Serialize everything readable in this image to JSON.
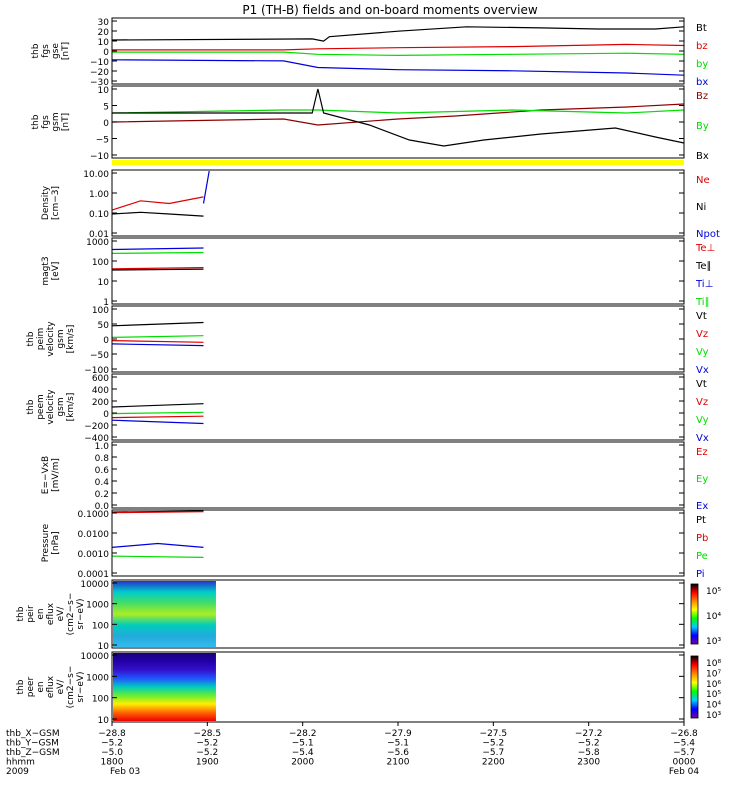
{
  "title": "P1 (TH-B) fields and on-board moments overview",
  "colors": {
    "black": "#000000",
    "red": "#dd0000",
    "green": "#00dd00",
    "blue": "#0000dd",
    "darkred": "#8b0000",
    "yellow": "#ffff00"
  },
  "chart_data": [
    {
      "type": "line",
      "ylabel": [
        "thb",
        "fgs",
        "gse",
        "[nT]"
      ],
      "yticks": [
        "30",
        "20",
        "10",
        "0",
        "−10",
        "−20",
        "−30"
      ],
      "ylim": [
        -30,
        30
      ],
      "legend": [
        {
          "text": "Bt",
          "color": "black"
        },
        {
          "text": "bz",
          "color": "red"
        },
        {
          "text": "by",
          "color": "green"
        },
        {
          "text": "bx",
          "color": "blue"
        }
      ],
      "series": [
        {
          "color": "black",
          "points": [
            [
              0,
              10
            ],
            [
              0.35,
              11
            ],
            [
              0.37,
              9
            ],
            [
              0.38,
              13
            ],
            [
              0.5,
              18
            ],
            [
              0.62,
              22
            ],
            [
              0.75,
              21
            ],
            [
              0.85,
              20
            ],
            [
              0.95,
              20
            ],
            [
              1,
              22
            ]
          ]
        },
        {
          "color": "red",
          "points": [
            [
              0,
              1
            ],
            [
              0.3,
              1
            ],
            [
              0.36,
              2
            ],
            [
              0.5,
              3
            ],
            [
              0.7,
              4
            ],
            [
              0.9,
              6
            ],
            [
              1,
              5
            ]
          ]
        },
        {
          "color": "green",
          "points": [
            [
              0,
              -1
            ],
            [
              0.3,
              -1
            ],
            [
              0.36,
              -3
            ],
            [
              0.5,
              -4
            ],
            [
              0.7,
              -3
            ],
            [
              0.9,
              -2
            ],
            [
              1,
              -3
            ]
          ]
        },
        {
          "color": "blue",
          "points": [
            [
              0,
              -8
            ],
            [
              0.3,
              -9
            ],
            [
              0.36,
              -15
            ],
            [
              0.5,
              -17
            ],
            [
              0.7,
              -18
            ],
            [
              0.9,
              -20
            ],
            [
              1,
              -22
            ]
          ]
        }
      ]
    },
    {
      "type": "line",
      "ylabel": [
        "thb",
        "fgs",
        "gsm",
        "[nT]"
      ],
      "yticks": [
        "10",
        "5",
        "0",
        "−5",
        "−10"
      ],
      "ylim": [
        -14,
        10
      ],
      "legend": [
        {
          "text": "Bz",
          "color": "darkred"
        },
        {
          "text": "By",
          "color": "green"
        },
        {
          "text": "Bx",
          "color": "black"
        }
      ],
      "series": [
        {
          "color": "darkred",
          "points": [
            [
              0,
              -2
            ],
            [
              0.3,
              -1
            ],
            [
              0.36,
              -3
            ],
            [
              0.5,
              -1
            ],
            [
              0.6,
              0
            ],
            [
              0.75,
              2
            ],
            [
              0.9,
              3
            ],
            [
              1,
              4
            ]
          ]
        },
        {
          "color": "green",
          "points": [
            [
              0,
              1
            ],
            [
              0.3,
              2
            ],
            [
              0.36,
              2
            ],
            [
              0.5,
              1
            ],
            [
              0.7,
              2
            ],
            [
              0.9,
              1
            ],
            [
              1,
              2
            ]
          ]
        },
        {
          "color": "black",
          "points": [
            [
              0,
              1
            ],
            [
              0.35,
              1
            ],
            [
              0.36,
              9
            ],
            [
              0.37,
              1
            ],
            [
              0.45,
              -3
            ],
            [
              0.52,
              -8
            ],
            [
              0.58,
              -10
            ],
            [
              0.65,
              -8
            ],
            [
              0.75,
              -6
            ],
            [
              0.88,
              -4
            ],
            [
              0.95,
              -7
            ],
            [
              1,
              -9
            ]
          ]
        }
      ]
    },
    {
      "type": "log-line",
      "ylabel": [
        "Density",
        "[cm−3]"
      ],
      "yticks": [
        "10.00",
        "1.00",
        "0.10",
        "0.01"
      ],
      "ylim": [
        0.01,
        10
      ],
      "legend": [
        {
          "text": "Ne",
          "color": "red"
        },
        {
          "text": "Ni",
          "color": "black"
        },
        {
          "text": "Npot",
          "color": "blue"
        }
      ],
      "series": [
        {
          "color": "red",
          "points": [
            [
              0,
              0.15
            ],
            [
              0.05,
              0.4
            ],
            [
              0.1,
              0.3
            ],
            [
              0.16,
              0.6
            ]
          ]
        },
        {
          "color": "black",
          "points": [
            [
              0,
              0.1
            ],
            [
              0.05,
              0.12
            ],
            [
              0.1,
              0.1
            ],
            [
              0.16,
              0.08
            ]
          ]
        },
        {
          "color": "blue",
          "points": [
            [
              0.16,
              0.3
            ],
            [
              0.17,
              9
            ]
          ]
        }
      ]
    },
    {
      "type": "log-line",
      "ylabel": [
        "magt3",
        "[eV]"
      ],
      "yticks": [
        "1000",
        "100",
        "10",
        "1"
      ],
      "ylim": [
        1,
        1000
      ],
      "legend": [
        {
          "text": "Te⊥",
          "color": "red"
        },
        {
          "text": "Te∥",
          "color": "black"
        },
        {
          "text": "Ti⊥",
          "color": "blue"
        },
        {
          "text": "Ti∥",
          "color": "green"
        }
      ],
      "series": [
        {
          "color": "blue",
          "points": [
            [
              0,
              300
            ],
            [
              0.16,
              350
            ]
          ]
        },
        {
          "color": "green",
          "points": [
            [
              0,
              200
            ],
            [
              0.16,
              220
            ]
          ]
        },
        {
          "color": "red",
          "points": [
            [
              0,
              40
            ],
            [
              0.16,
              45
            ]
          ]
        },
        {
          "color": "black",
          "points": [
            [
              0,
              35
            ],
            [
              0.16,
              38
            ]
          ]
        }
      ]
    },
    {
      "type": "line",
      "ylabel": [
        "thb",
        "peim",
        "velocity",
        "gsm",
        "[km/s]"
      ],
      "yticks": [
        "100",
        "50",
        "0",
        "−50",
        "−100"
      ],
      "ylim": [
        -100,
        100
      ],
      "legend": [
        {
          "text": "Vt",
          "color": "black"
        },
        {
          "text": "Vz",
          "color": "red"
        },
        {
          "text": "Vy",
          "color": "green"
        },
        {
          "text": "Vx",
          "color": "blue"
        }
      ],
      "series": [
        {
          "color": "black",
          "points": [
            [
              0,
              40
            ],
            [
              0.16,
              50
            ]
          ]
        },
        {
          "color": "green",
          "points": [
            [
              0,
              5
            ],
            [
              0.16,
              10
            ]
          ]
        },
        {
          "color": "red",
          "points": [
            [
              0,
              -5
            ],
            [
              0.16,
              -10
            ]
          ]
        },
        {
          "color": "blue",
          "points": [
            [
              0,
              -15
            ],
            [
              0.16,
              -20
            ]
          ]
        }
      ]
    },
    {
      "type": "line",
      "ylabel": [
        "thb",
        "peem",
        "velocity",
        "gsm",
        "[km/s]"
      ],
      "yticks": [
        "600",
        "400",
        "200",
        "0",
        "−200",
        "−400"
      ],
      "ylim": [
        -400,
        600
      ],
      "legend": [
        {
          "text": "Vt",
          "color": "black"
        },
        {
          "text": "Vz",
          "color": "red"
        },
        {
          "text": "Vy",
          "color": "green"
        },
        {
          "text": "Vx",
          "color": "blue"
        }
      ],
      "series": [
        {
          "color": "black",
          "points": [
            [
              0,
              100
            ],
            [
              0.16,
              150
            ]
          ]
        },
        {
          "color": "green",
          "points": [
            [
              0,
              0
            ],
            [
              0.16,
              20
            ]
          ]
        },
        {
          "color": "red",
          "points": [
            [
              0,
              -60
            ],
            [
              0.16,
              -40
            ]
          ]
        },
        {
          "color": "blue",
          "points": [
            [
              0,
              -100
            ],
            [
              0.16,
              -150
            ]
          ]
        }
      ]
    },
    {
      "type": "line",
      "ylabel": [
        "E=−VxB",
        "[mV/m]"
      ],
      "yticks": [
        "1.0",
        "0.8",
        "0.6",
        "0.4",
        "0.2",
        "0.0"
      ],
      "ylim": [
        0,
        1
      ],
      "legend": [
        {
          "text": "Ez",
          "color": "red"
        },
        {
          "text": "Ey",
          "color": "green"
        },
        {
          "text": "Ex",
          "color": "blue"
        }
      ],
      "series": []
    },
    {
      "type": "log-line",
      "ylabel": [
        "Pressure",
        "[nPa]"
      ],
      "yticks": [
        "0.1000",
        "0.0100",
        "0.0010",
        "0.0001"
      ],
      "ylim": [
        0.0001,
        0.1
      ],
      "legend": [
        {
          "text": "Pt",
          "color": "black"
        },
        {
          "text": "Pb",
          "color": "red"
        },
        {
          "text": "Pe",
          "color": "green"
        },
        {
          "text": "Pi",
          "color": "blue"
        }
      ],
      "series": [
        {
          "color": "black",
          "points": [
            [
              0,
              0.08
            ],
            [
              0.16,
              0.09
            ]
          ]
        },
        {
          "color": "red",
          "points": [
            [
              0,
              0.075
            ],
            [
              0.16,
              0.085
            ]
          ]
        },
        {
          "color": "blue",
          "points": [
            [
              0,
              0.002
            ],
            [
              0.08,
              0.003
            ],
            [
              0.16,
              0.002
            ]
          ]
        },
        {
          "color": "green",
          "points": [
            [
              0,
              0.0008
            ],
            [
              0.16,
              0.0007
            ]
          ]
        }
      ]
    },
    {
      "type": "heatmap",
      "ylabel": [
        "thb",
        "peir",
        "en",
        "eflux",
        "eV/",
        "(cm2−s−",
        "sr−eV)"
      ],
      "yticks": [
        "10000",
        "1000",
        "100",
        "10"
      ],
      "colorbar": [
        "10⁵",
        "10⁴",
        "10³"
      ],
      "data_end": 0.18
    },
    {
      "type": "heatmap",
      "ylabel": [
        "thb",
        "peer",
        "en",
        "eflux",
        "eV/",
        "(cm2−s−",
        "sr−eV)"
      ],
      "yticks": [
        "10000",
        "1000",
        "100",
        "10"
      ],
      "colorbar": [
        "10⁸",
        "10⁷",
        "10⁶",
        "10⁵",
        "10⁴",
        "10³"
      ],
      "data_end": 0.18
    }
  ],
  "axis": {
    "row_labels": [
      "thb_X−GSM",
      "thb_Y−GSM",
      "thb_Z−GSM",
      "hhmm",
      "2009"
    ],
    "columns": [
      [
        "−28.8",
        "−5.2",
        "−5.0",
        "1800",
        "Feb 03"
      ],
      [
        "−28.5",
        "−5.2",
        "−5.2",
        "1900",
        ""
      ],
      [
        "−28.2",
        "−5.1",
        "−5.4",
        "2000",
        ""
      ],
      [
        "−27.9",
        "−5.1",
        "−5.6",
        "2100",
        ""
      ],
      [
        "−27.5",
        "−5.2",
        "−5.7",
        "2200",
        ""
      ],
      [
        "−27.2",
        "−5.2",
        "−5.8",
        "2300",
        ""
      ],
      [
        "−26.8",
        "−5.4",
        "−5.7",
        "0000",
        "Feb 04"
      ]
    ]
  }
}
